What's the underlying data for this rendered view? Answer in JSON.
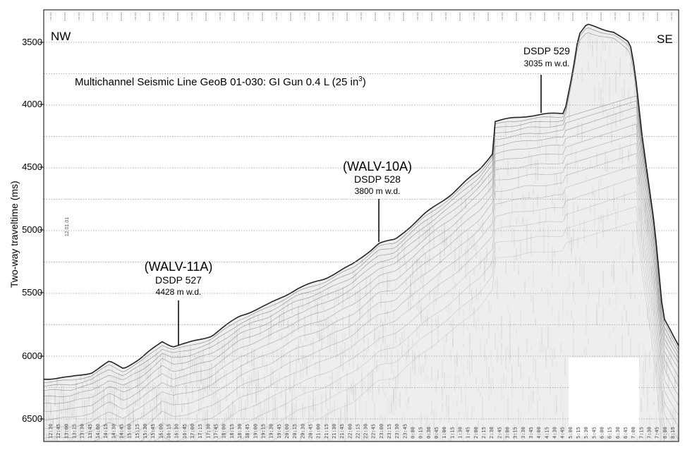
{
  "figure": {
    "title": "Multichannel Seismic Line GeoB 01-030:  GI Gun 0.4 L (25 in",
    "title_sup": "3",
    "title_end": ")",
    "direction_left": "NW",
    "direction_right": "SE",
    "y_axis_label": "Two-way traveltime (ms)",
    "y_ticks": [
      "3500",
      "4000",
      "4500",
      "5000",
      "5500",
      "6000",
      "6500"
    ],
    "y_range_ms": [
      3300,
      6700
    ],
    "side_label": "12.01.01",
    "sites": [
      {
        "name": "(WALV-11A)",
        "dsdp": "DSDP 527",
        "depth": "4428 m w.d."
      },
      {
        "name": "(WALV-10A)",
        "dsdp": "DSDP 528",
        "depth": "3800 m w.d."
      },
      {
        "name": "",
        "dsdp": "DSDP 529",
        "depth": "3035 m w.d."
      }
    ],
    "time_labels": [
      "12:30",
      "12:45",
      "13:00",
      "13:15",
      "13:30",
      "13:45",
      "14:00",
      "14:15",
      "14:30",
      "14:45",
      "15:00",
      "15:15",
      "15:30",
      "15:45",
      "16:00",
      "16:15",
      "16:30",
      "16:45",
      "17:00",
      "17:15",
      "17:30",
      "17:45",
      "18:00",
      "18:15",
      "18:30",
      "18:45",
      "19:00",
      "19:15",
      "19:30",
      "19:45",
      "20:00",
      "20:15",
      "20:30",
      "20:45",
      "21:00",
      "21:15",
      "21:30",
      "21:45",
      "22:00",
      "22:15",
      "22:30",
      "22:45",
      "23:00",
      "23:15",
      "23:30",
      "23:45",
      "0:00",
      "0:15",
      "0:30",
      "0:45",
      "1:00",
      "1:15",
      "1:30",
      "1:45",
      "2:00",
      "2:15",
      "2:30",
      "2:45",
      "3:00",
      "3:15",
      "3:30",
      "3:45",
      "4:00",
      "4:15",
      "4:30",
      "4:45",
      "5:00",
      "5:15",
      "5:30",
      "5:45",
      "6:00",
      "6:15",
      "6:30",
      "6:45",
      "7:00",
      "7:15",
      "7:30",
      "7:45",
      "8:00",
      "8:15"
    ],
    "colors": {
      "ink": "#000000",
      "grid": "#9a9a9a",
      "noise": "#b0b0b0"
    }
  }
}
